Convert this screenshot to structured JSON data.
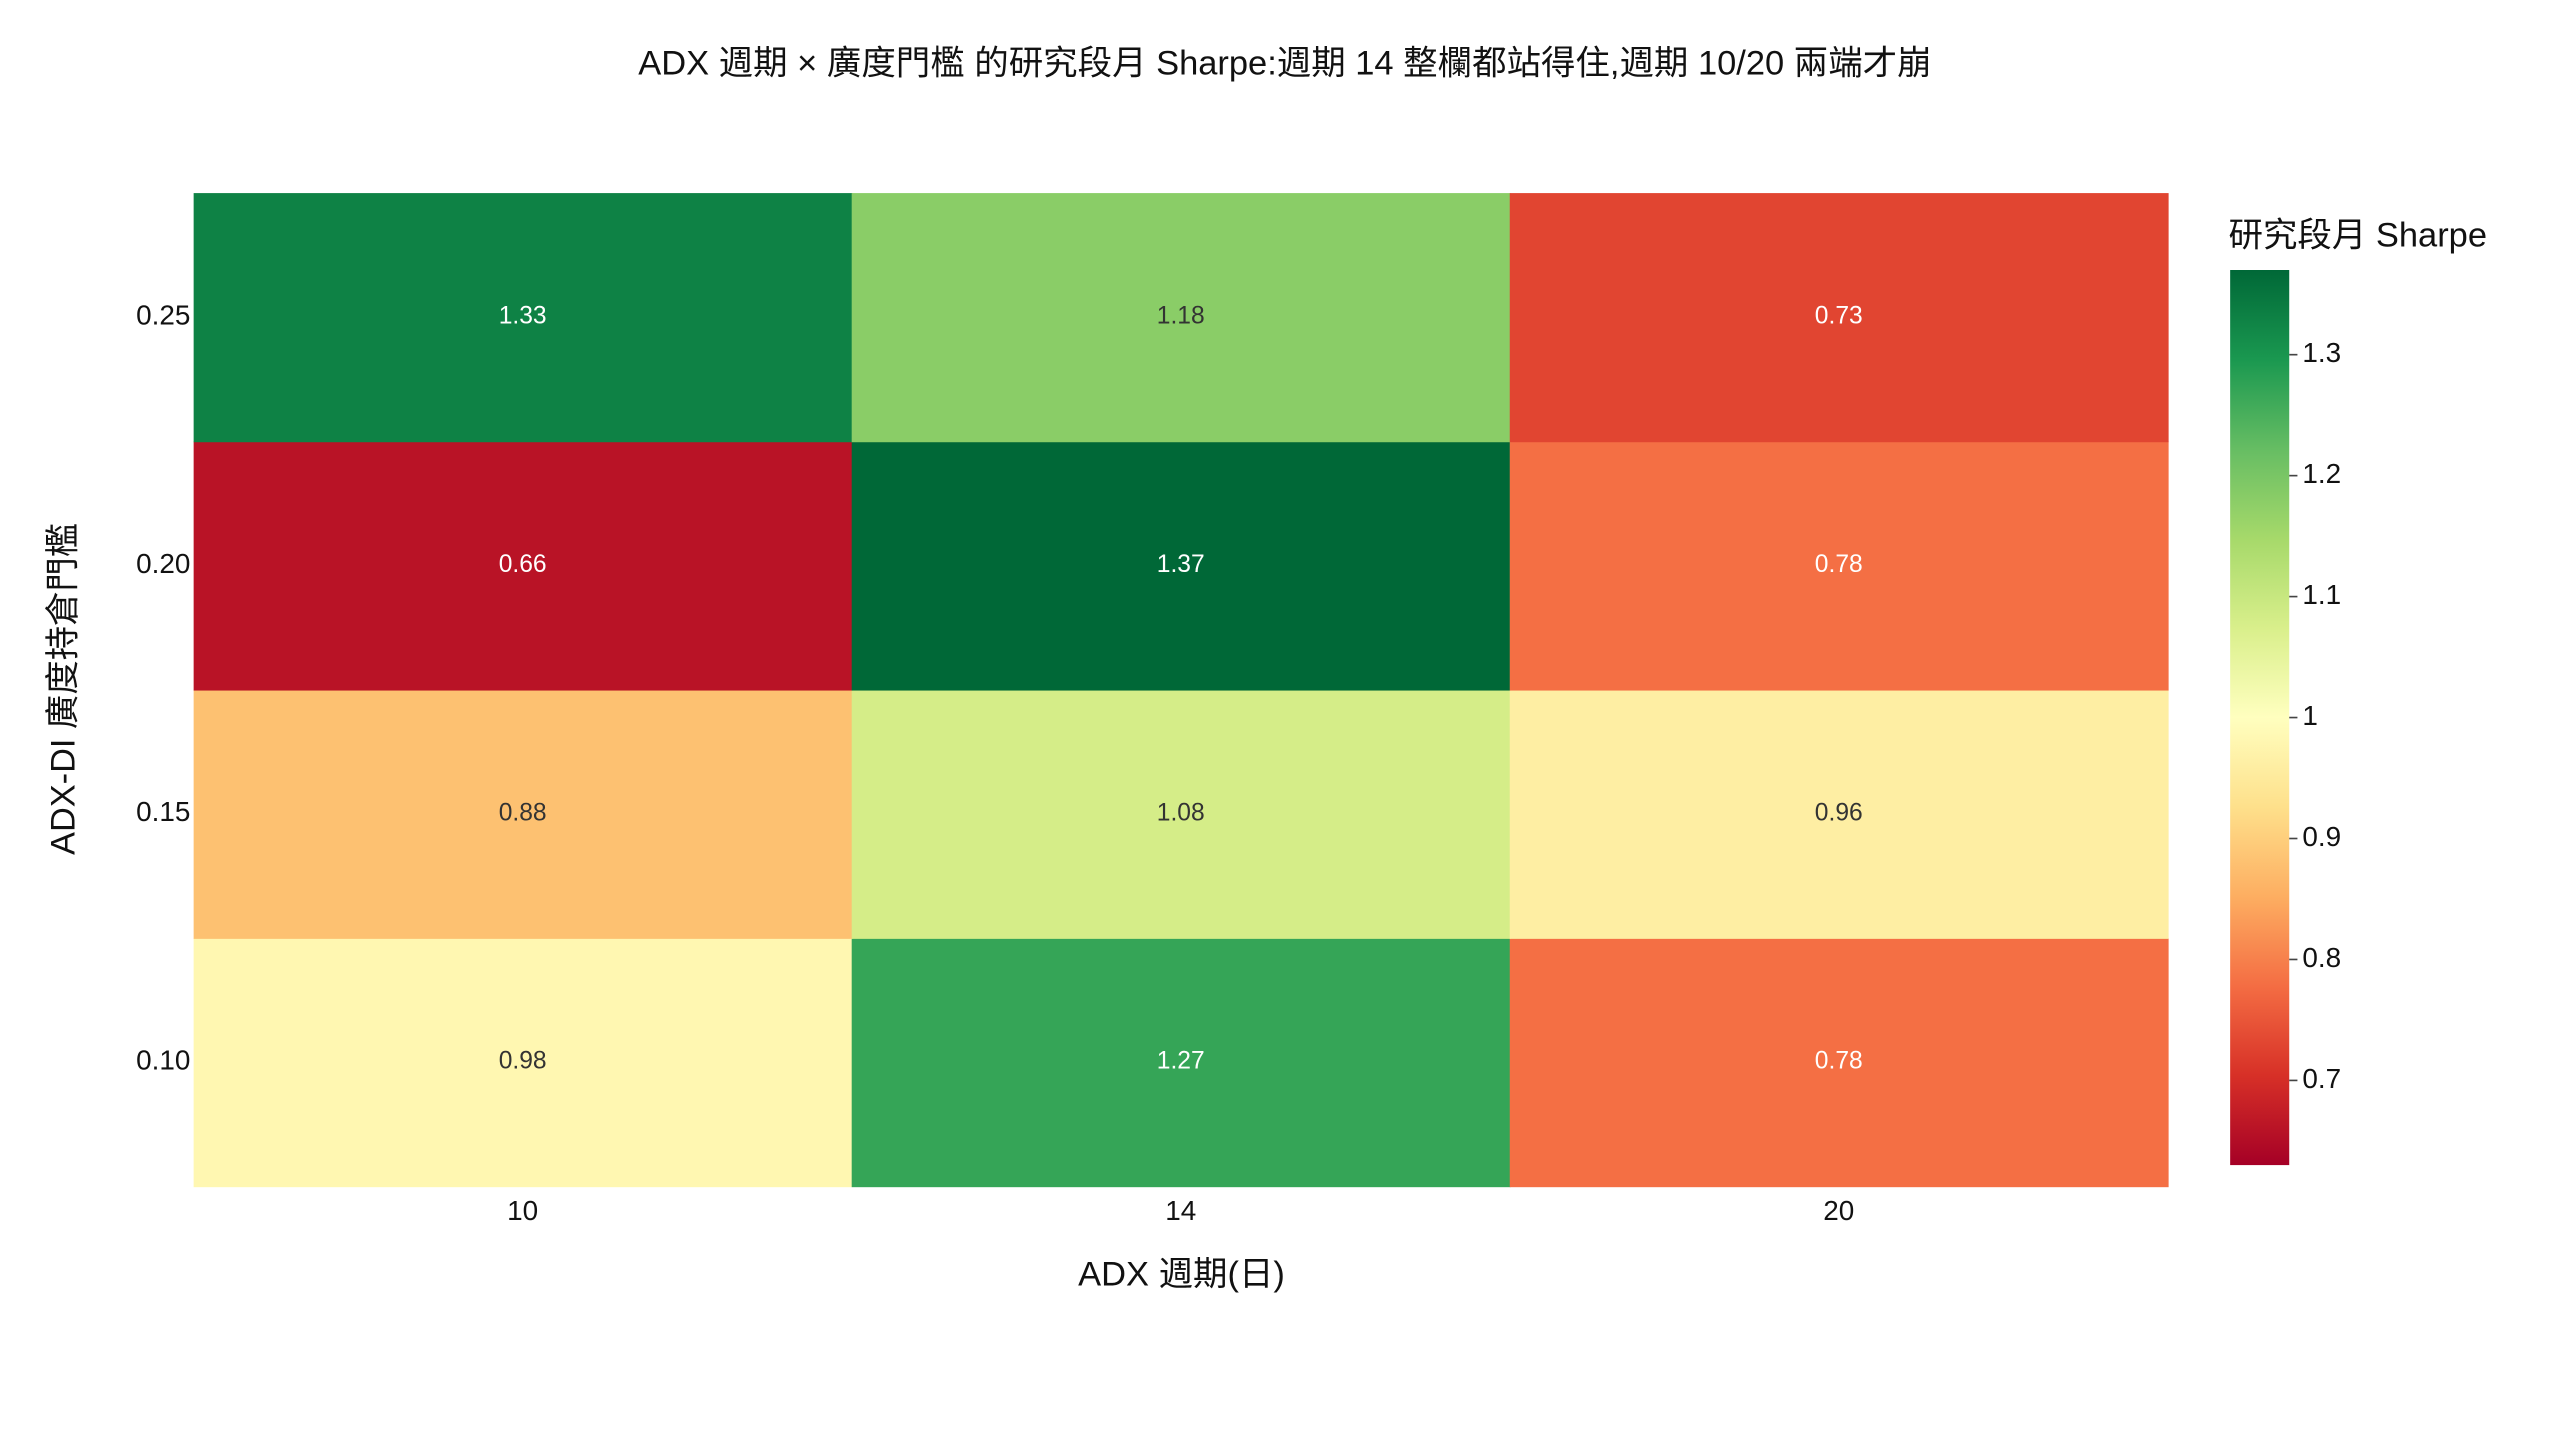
{
  "chart_data": {
    "type": "heatmap",
    "title": "ADX 週期 × 廣度門檻 的研究段月 Sharpe:週期 14 整欄都站得住,週期 10/20 兩端才崩",
    "x_label": "ADX 週期(日)",
    "y_label": "ADX-DI 廣度持倉門檻",
    "x": [
      "10",
      "14",
      "20"
    ],
    "y": [
      "0.10",
      "0.15",
      "0.20",
      "0.25"
    ],
    "z": [
      [
        0.98,
        1.27,
        0.78
      ],
      [
        0.88,
        1.08,
        0.96
      ],
      [
        0.66,
        1.37,
        0.78
      ],
      [
        1.33,
        1.18,
        0.73
      ]
    ],
    "colorbar_title": "研究段月 Sharpe",
    "zlim": [
      0.63,
      1.37
    ],
    "zticks": [
      0.7,
      0.8,
      0.9,
      1,
      1.1,
      1.2,
      1.3
    ],
    "colorscale": [
      "#a50026",
      "#d73027",
      "#f46d43",
      "#fdae61",
      "#fee08b",
      "#ffffbf",
      "#d9ef8b",
      "#a6d96a",
      "#66bd63",
      "#1a9850",
      "#006837"
    ]
  }
}
